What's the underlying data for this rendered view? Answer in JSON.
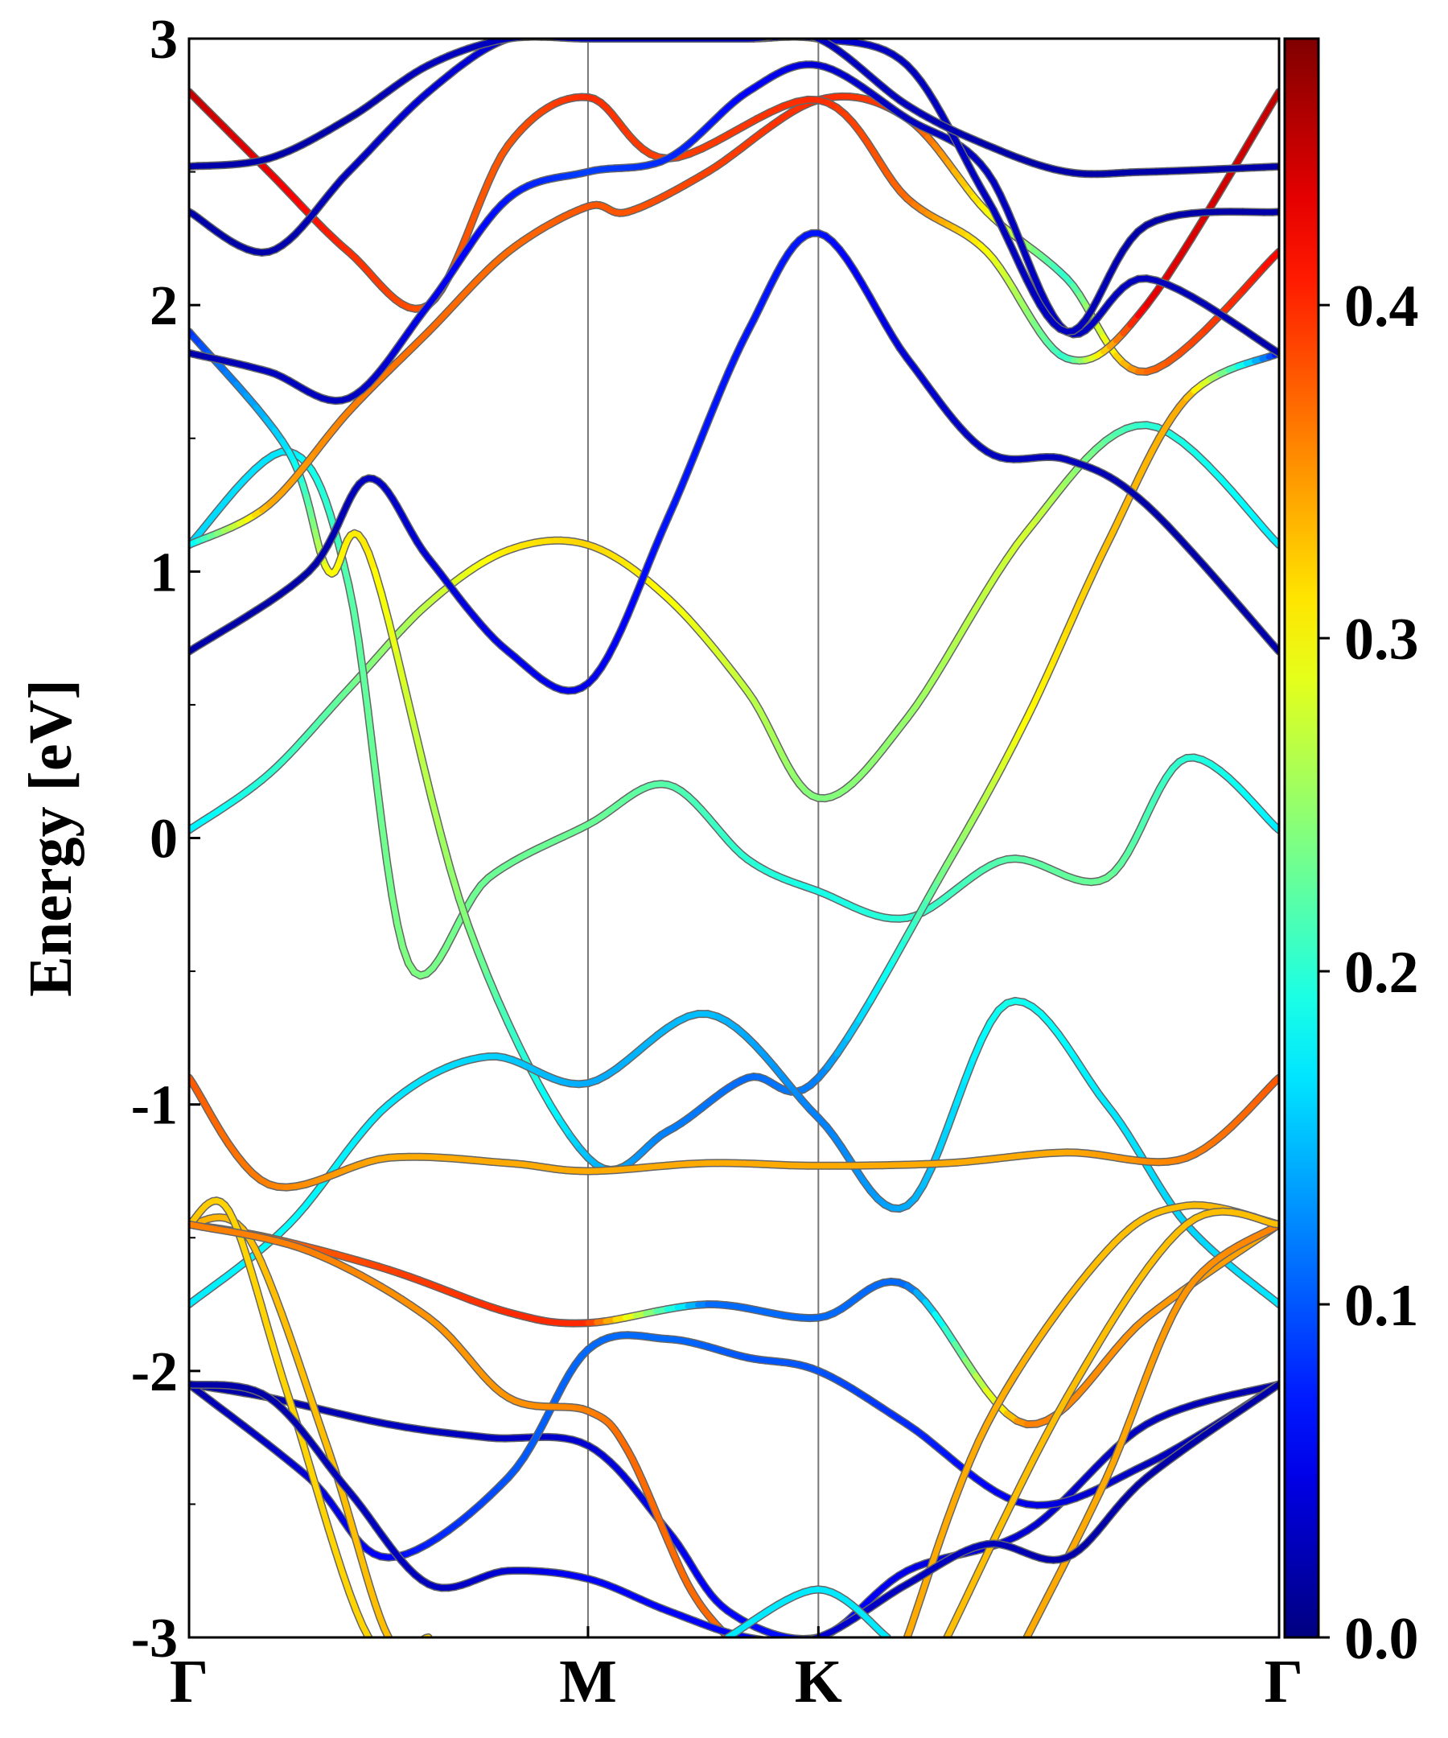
{
  "chart_data": {
    "type": "line",
    "ylabel": "Energy [eV]",
    "ylim": [
      -3,
      3
    ],
    "yticks": [
      {
        "value": -3,
        "label": "-3"
      },
      {
        "value": -2,
        "label": "-2"
      },
      {
        "value": -1,
        "label": "-1"
      },
      {
        "value": 0,
        "label": "0"
      },
      {
        "value": 1,
        "label": "1"
      },
      {
        "value": 2,
        "label": "2"
      },
      {
        "value": 3,
        "label": "3"
      }
    ],
    "xticks": [
      {
        "x": 0,
        "label": "Γ"
      },
      {
        "x": 1,
        "label": "M"
      },
      {
        "x": 1.5774,
        "label": "K"
      },
      {
        "x": 2.7321,
        "label": "Γ"
      }
    ],
    "xlim": [
      0,
      2.7321
    ],
    "colorbar": {
      "colormap": "jet",
      "range": [
        0,
        0.48
      ],
      "ticks": [
        {
          "value": 0.0,
          "label": "0.0"
        },
        {
          "value": 0.1,
          "label": "0.1"
        },
        {
          "value": 0.2,
          "label": "0.2"
        },
        {
          "value": 0.3,
          "label": "0.3"
        },
        {
          "value": 0.4,
          "label": "0.4"
        }
      ]
    },
    "series": [
      {
        "x": [
          0,
          0.2,
          0.4,
          0.6,
          0.8,
          1.0,
          1.2,
          1.4,
          1.5774,
          1.8,
          2.1,
          2.4,
          2.7321
        ],
        "y": [
          0.03,
          0.24,
          0.56,
          0.88,
          1.08,
          1.1,
          0.9,
          0.55,
          0.15,
          0.45,
          1.15,
          1.55,
          1.1
        ],
        "c": [
          0.17,
          0.2,
          0.23,
          0.27,
          0.31,
          0.32,
          0.3,
          0.27,
          0.24,
          0.25,
          0.28,
          0.2,
          0.17
        ]
      },
      {
        "x": [
          0,
          0.25,
          0.4,
          0.55,
          0.75,
          1.0,
          1.2,
          1.4,
          1.5774,
          1.8,
          2.05,
          2.3,
          2.5,
          2.7321
        ],
        "y": [
          1.1,
          1.45,
          0.95,
          -0.47,
          -0.15,
          0.05,
          0.2,
          -0.08,
          -0.2,
          -0.3,
          -0.08,
          -0.15,
          0.3,
          0.03
        ],
        "c": [
          0.16,
          0.17,
          0.22,
          0.24,
          0.23,
          0.23,
          0.22,
          0.2,
          0.19,
          0.2,
          0.22,
          0.23,
          0.2,
          0.17
        ]
      },
      {
        "x": [
          0,
          0.25,
          0.35,
          0.45,
          0.7,
          1.0,
          1.2,
          1.4,
          1.5774,
          1.9,
          2.1,
          2.3,
          2.5,
          2.7321
        ],
        "y": [
          1.9,
          1.45,
          1.0,
          1.07,
          -0.33,
          -1.2,
          -1.1,
          -0.9,
          -0.9,
          -0.1,
          0.45,
          1.1,
          1.65,
          1.82
        ],
        "c": [
          0.08,
          0.17,
          0.3,
          0.31,
          0.24,
          0.15,
          0.12,
          0.11,
          0.12,
          0.24,
          0.3,
          0.33,
          0.34,
          0.06
        ]
      },
      {
        "x": [
          0,
          0.3,
          0.45,
          0.6,
          0.8,
          1.0,
          1.2,
          1.4,
          1.5774,
          1.8,
          2.0,
          2.2,
          2.4,
          2.7321
        ],
        "y": [
          0.7,
          1.0,
          1.35,
          1.05,
          0.7,
          0.58,
          1.2,
          1.9,
          2.27,
          1.8,
          1.45,
          1.42,
          1.25,
          0.7
        ],
        "c": [
          0.02,
          0.02,
          0.03,
          0.04,
          0.05,
          0.05,
          0.07,
          0.07,
          0.07,
          0.04,
          0.03,
          0.03,
          0.02,
          0.02
        ]
      },
      {
        "x": [
          0,
          0.25,
          0.5,
          0.75,
          1.0,
          1.3,
          1.5774,
          1.8,
          2.05,
          2.3,
          2.5,
          2.7321
        ],
        "y": [
          -1.75,
          -1.45,
          -1.0,
          -0.82,
          -0.92,
          -0.66,
          -1.05,
          -1.38,
          -0.62,
          -1.0,
          -1.45,
          -1.75
        ],
        "c": [
          0.17,
          0.18,
          0.17,
          0.16,
          0.14,
          0.15,
          0.12,
          0.14,
          0.19,
          0.17,
          0.16,
          0.17
        ]
      },
      {
        "x": [
          0,
          0.2,
          0.5,
          0.8,
          1.0,
          1.3,
          1.5774,
          1.9,
          2.2,
          2.5,
          2.7321
        ],
        "y": [
          -0.9,
          -1.3,
          -1.2,
          -1.22,
          -1.25,
          -1.22,
          -1.23,
          -1.22,
          -1.18,
          -1.2,
          -0.9
        ],
        "c": [
          0.38,
          0.36,
          0.34,
          0.34,
          0.34,
          0.34,
          0.34,
          0.34,
          0.34,
          0.36,
          0.38
        ]
      },
      {
        "x": [
          0,
          0.2,
          0.5,
          0.8,
          1.0,
          1.3,
          1.5774,
          1.8,
          2.1,
          2.4,
          2.7321
        ],
        "y": [
          -1.45,
          -1.5,
          -1.62,
          -1.78,
          -1.82,
          -1.75,
          -1.8,
          -1.68,
          -2.2,
          -1.8,
          -1.45
        ],
        "c": [
          0.36,
          0.37,
          0.39,
          0.4,
          0.4,
          0.11,
          0.11,
          0.11,
          0.36,
          0.35,
          0.34
        ]
      },
      {
        "x": [
          0,
          0.2,
          0.5,
          0.75,
          1.0,
          1.2,
          1.35,
          1.5774,
          1.8,
          2.1,
          2.4,
          2.7321
        ],
        "y": [
          -2.05,
          -2.1,
          -2.2,
          -2.25,
          -2.28,
          -2.6,
          -2.9,
          -3.0,
          -2.75,
          -2.6,
          -2.2,
          -2.05
        ],
        "c": [
          0.02,
          0.02,
          0.03,
          0.03,
          0.04,
          0.05,
          0.06,
          0.07,
          0.05,
          0.04,
          0.03,
          0.02
        ]
      },
      {
        "x": [
          0,
          0.3,
          0.5,
          0.8,
          1.0,
          1.2,
          1.4,
          1.5774,
          1.8,
          2.1,
          2.4,
          2.7321
        ],
        "y": [
          -2.05,
          -2.4,
          -2.7,
          -2.4,
          -1.92,
          -1.88,
          -1.95,
          -2.0,
          -2.2,
          -2.5,
          -2.35,
          -2.05
        ],
        "c": [
          0.02,
          0.04,
          0.06,
          0.1,
          0.11,
          0.11,
          0.1,
          0.1,
          0.08,
          0.05,
          0.03,
          0.02
        ]
      },
      {
        "x": [
          0,
          0.15,
          0.35,
          0.5,
          0.6
        ],
        "y": [
          -1.45,
          -1.5,
          -2.3,
          -3.0,
          -3.0
        ],
        "c": [
          0.34,
          0.33,
          0.33,
          0.33,
          0.33
        ]
      },
      {
        "x": [
          0,
          0.1,
          0.25,
          0.45,
          0.6
        ],
        "y": [
          -1.45,
          -1.4,
          -2.1,
          -3.0,
          -3.0
        ],
        "c": [
          0.33,
          0.32,
          0.32,
          0.32,
          0.32
        ]
      },
      {
        "x": [
          0,
          0.3,
          0.6,
          0.8,
          1.0,
          1.1,
          1.25,
          1.35
        ],
        "y": [
          -1.45,
          -1.55,
          -1.8,
          -2.1,
          -2.15,
          -2.3,
          -2.8,
          -3.0
        ],
        "c": [
          0.36,
          0.36,
          0.35,
          0.35,
          0.36,
          0.37,
          0.37,
          0.37
        ]
      },
      {
        "x": [
          2.1,
          2.3,
          2.5,
          2.7321
        ],
        "y": [
          -3.0,
          -2.4,
          -1.7,
          -1.45
        ],
        "c": [
          0.34,
          0.34,
          0.35,
          0.36
        ]
      },
      {
        "x": [
          1.8,
          2.0,
          2.3,
          2.5,
          2.7321
        ],
        "y": [
          -3.0,
          -2.2,
          -1.55,
          -1.38,
          -1.45
        ],
        "c": [
          0.34,
          0.34,
          0.33,
          0.33,
          0.34
        ]
      },
      {
        "x": [
          1.9,
          2.2,
          2.5,
          2.7321
        ],
        "y": [
          -3.0,
          -2.1,
          -1.45,
          -1.45
        ],
        "c": [
          0.33,
          0.33,
          0.33,
          0.33
        ]
      },
      {
        "x": [
          0,
          0.2,
          0.4,
          0.6,
          0.8,
          1.0,
          1.2,
          1.4,
          1.5774,
          1.8,
          2.0,
          2.2,
          2.4,
          2.7321
        ],
        "y": [
          -2.05,
          -2.1,
          -2.45,
          -2.8,
          -2.75,
          -2.78,
          -2.9,
          -3.0,
          -3.0,
          -2.8,
          -2.65,
          -2.7,
          -2.4,
          -2.05
        ],
        "c": [
          0.02,
          0.02,
          0.03,
          0.03,
          0.04,
          0.06,
          0.06,
          0.06,
          0.04,
          0.03,
          0.03,
          0.02,
          0.02,
          0.02
        ]
      },
      {
        "x": [
          1.35,
          1.5774,
          1.75
        ],
        "y": [
          -3.0,
          -2.82,
          -3.0
        ],
        "c": [
          0.17,
          0.17,
          0.17
        ]
      },
      {
        "x": [
          0,
          0.2,
          0.4,
          0.6,
          0.8,
          1.0,
          1.1,
          1.3,
          1.5774,
          1.8,
          2.0,
          2.2,
          2.4,
          2.7321
        ],
        "y": [
          1.1,
          1.25,
          1.6,
          1.9,
          2.2,
          2.37,
          2.35,
          2.5,
          2.77,
          2.7,
          2.35,
          2.1,
          1.75,
          2.2
        ],
        "c": [
          0.16,
          0.34,
          0.36,
          0.37,
          0.37,
          0.38,
          0.38,
          0.39,
          0.4,
          0.39,
          0.3,
          0.2,
          0.37,
          0.42
        ]
      },
      {
        "x": [
          0,
          0.2,
          0.4,
          0.6,
          0.8,
          1.0,
          1.2,
          1.5774,
          1.8,
          2.0,
          2.2,
          2.4,
          2.7321
        ],
        "y": [
          2.8,
          2.5,
          2.2,
          2.0,
          2.6,
          2.78,
          2.55,
          2.77,
          2.4,
          2.2,
          1.8,
          2.0,
          2.8
        ],
        "c": [
          0.45,
          0.43,
          0.4,
          0.38,
          0.38,
          0.4,
          0.39,
          0.4,
          0.37,
          0.3,
          0.2,
          0.43,
          0.45
        ]
      },
      {
        "x": [
          0,
          0.2,
          0.4,
          0.6,
          0.8,
          1.0,
          1.2,
          1.4,
          1.5774,
          1.8,
          2.0,
          2.2,
          2.4,
          2.7321
        ],
        "y": [
          1.82,
          1.75,
          1.65,
          2.0,
          2.4,
          2.5,
          2.55,
          2.8,
          2.9,
          2.7,
          2.5,
          1.9,
          2.1,
          1.82
        ],
        "c": [
          0.02,
          0.03,
          0.03,
          0.05,
          0.07,
          0.09,
          0.08,
          0.06,
          0.04,
          0.03,
          0.03,
          0.03,
          0.03,
          0.02
        ]
      },
      {
        "x": [
          0,
          0.2,
          0.4,
          0.6,
          0.8,
          1.0,
          1.2,
          1.4,
          1.5774,
          1.8,
          2.0,
          2.2,
          2.4,
          2.7321
        ],
        "y": [
          2.35,
          2.2,
          2.5,
          2.8,
          3.0,
          3.0,
          3.0,
          3.0,
          3.0,
          2.9,
          2.4,
          1.9,
          2.3,
          2.35
        ],
        "c": [
          0.02,
          0.02,
          0.03,
          0.04,
          0.04,
          0.04,
          0.04,
          0.04,
          0.04,
          0.03,
          0.03,
          0.03,
          0.02,
          0.02
        ]
      },
      {
        "x": [
          0,
          0.2,
          0.4,
          0.6,
          0.8,
          1.0,
          1.2,
          1.4,
          1.5774,
          1.8,
          2.0,
          2.2,
          2.4,
          2.7321
        ],
        "y": [
          2.52,
          2.55,
          2.7,
          2.9,
          3.0,
          3.0,
          3.0,
          3.0,
          3.0,
          2.75,
          2.6,
          2.5,
          2.5,
          2.52
        ],
        "c": [
          0.02,
          0.02,
          0.02,
          0.03,
          0.03,
          0.03,
          0.03,
          0.03,
          0.03,
          0.03,
          0.02,
          0.02,
          0.02,
          0.02
        ]
      }
    ]
  }
}
